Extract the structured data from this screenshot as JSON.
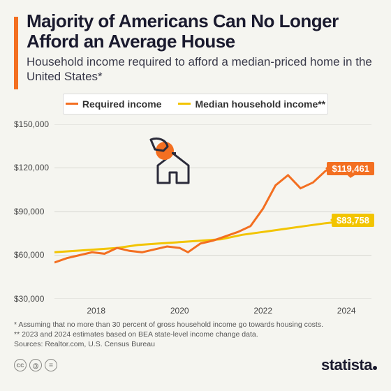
{
  "title": "Majority of Americans Can No Longer Afford an Average House",
  "subtitle": "Household income required to afford a median-priced home in the United States*",
  "legend": {
    "required": {
      "label": "Required income",
      "color": "#f36f21"
    },
    "median": {
      "label": "Median household income**",
      "color": "#f2c400"
    }
  },
  "chart": {
    "type": "line",
    "background_color": "#f5f5f0",
    "grid_color": "#d8d8d2",
    "ylim": [
      30000,
      150000
    ],
    "ytick_step": 30000,
    "yticks": [
      "$30,000",
      "$60,000",
      "$90,000",
      "$120,000",
      "$150,000"
    ],
    "x_years": [
      2017,
      2024.6
    ],
    "xticks": [
      2018,
      2020,
      2022,
      2024
    ],
    "line_width": 3,
    "series": {
      "required": {
        "color": "#f36f21",
        "points": [
          [
            2017.0,
            55000
          ],
          [
            2017.3,
            58000
          ],
          [
            2017.6,
            60000
          ],
          [
            2017.9,
            62000
          ],
          [
            2018.2,
            61000
          ],
          [
            2018.5,
            65000
          ],
          [
            2018.8,
            63000
          ],
          [
            2019.1,
            62000
          ],
          [
            2019.4,
            64000
          ],
          [
            2019.7,
            66000
          ],
          [
            2020.0,
            65000
          ],
          [
            2020.2,
            62000
          ],
          [
            2020.5,
            68000
          ],
          [
            2020.8,
            70000
          ],
          [
            2021.1,
            73000
          ],
          [
            2021.4,
            76000
          ],
          [
            2021.7,
            80000
          ],
          [
            2022.0,
            92000
          ],
          [
            2022.3,
            108000
          ],
          [
            2022.6,
            115000
          ],
          [
            2022.9,
            106000
          ],
          [
            2023.2,
            110000
          ],
          [
            2023.5,
            118000
          ],
          [
            2023.8,
            122000
          ],
          [
            2024.1,
            114000
          ],
          [
            2024.4,
            119461
          ]
        ],
        "end_label": "$119,461"
      },
      "median": {
        "color": "#f2c400",
        "points": [
          [
            2017.0,
            62000
          ],
          [
            2017.5,
            63000
          ],
          [
            2018.0,
            64000
          ],
          [
            2018.5,
            65000
          ],
          [
            2019.0,
            67000
          ],
          [
            2019.5,
            68000
          ],
          [
            2020.0,
            69000
          ],
          [
            2020.5,
            70000
          ],
          [
            2021.0,
            71000
          ],
          [
            2021.5,
            74000
          ],
          [
            2022.0,
            76000
          ],
          [
            2022.5,
            78000
          ],
          [
            2023.0,
            80000
          ],
          [
            2023.5,
            82000
          ],
          [
            2024.0,
            83500
          ],
          [
            2024.4,
            83758
          ]
        ],
        "end_label": "$83,758"
      }
    }
  },
  "footnotes": {
    "n1": "*   Assuming that no more than 30 percent of gross household income go towards housing costs.",
    "n2": "** 2023 and 2024 estimates based on BEA state-level income change data.",
    "src": "Sources: Realtor.com, U.S. Census Bureau"
  },
  "brand": "statista",
  "cc_icons": [
    "cc",
    "by",
    "nd"
  ]
}
